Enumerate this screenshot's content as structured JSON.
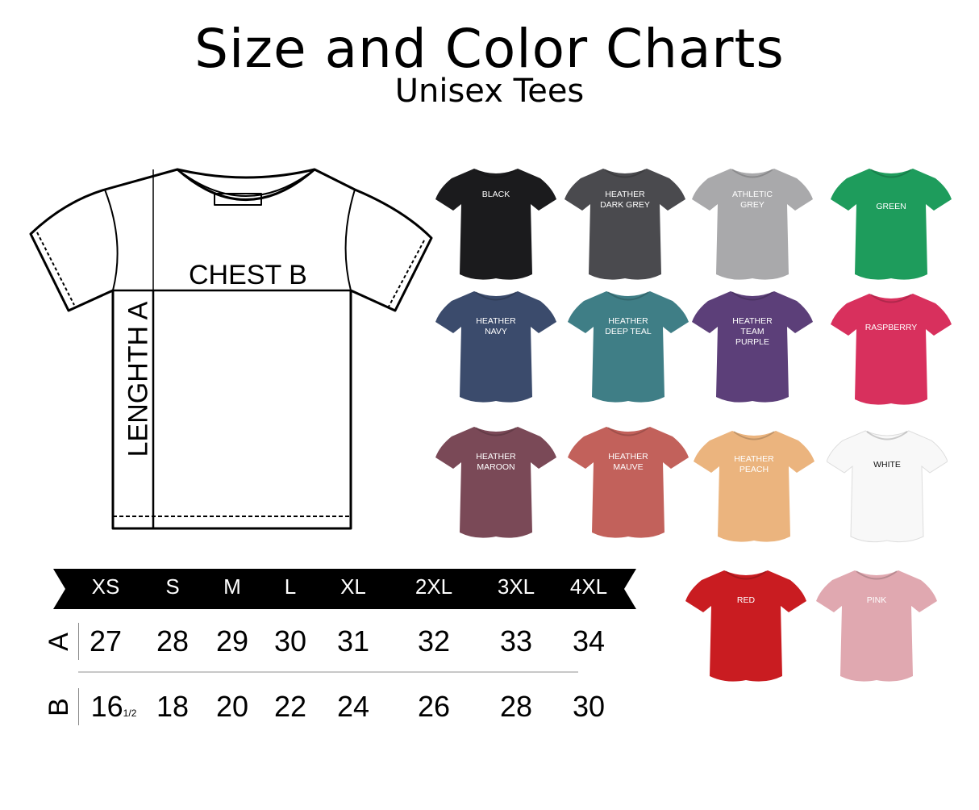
{
  "header": {
    "title": "Size and Color Charts",
    "subtitle": "Unisex Tees"
  },
  "diagram": {
    "chest_label": "CHEST B",
    "length_label": "LENGHTH A"
  },
  "size_chart": {
    "sizes": [
      "XS",
      "S",
      "M",
      "L",
      "XL",
      "2XL",
      "3XL",
      "4XL"
    ],
    "rows": [
      {
        "label": "A",
        "values": [
          "27",
          "28",
          "29",
          "30",
          "31",
          "32",
          "33",
          "34"
        ]
      },
      {
        "label": "B",
        "values": [
          "16",
          "18",
          "20",
          "22",
          "24",
          "26",
          "28",
          "30"
        ],
        "first_fraction": "1/2"
      }
    ]
  },
  "colors": [
    {
      "name": "BLACK",
      "hex": "#1b1b1d",
      "text": "#ffffff"
    },
    {
      "name": "HEATHER\nDARK GREY",
      "hex": "#4a4a4e",
      "text": "#ffffff"
    },
    {
      "name": "ATHLETIC\nGREY",
      "hex": "#a9a9ab",
      "text": "#ffffff"
    },
    {
      "name": "GREEN",
      "hex": "#1e9c5c",
      "text": "#ffffff"
    },
    {
      "name": "HEATHER\nNAVY",
      "hex": "#3b4b6c",
      "text": "#ffffff"
    },
    {
      "name": "HEATHER\nDEEP TEAL",
      "hex": "#3f7e86",
      "text": "#ffffff"
    },
    {
      "name": "HEATHER\nTEAM\nPURPLE",
      "hex": "#5c3f79",
      "text": "#ffffff"
    },
    {
      "name": "RASPBERRY",
      "hex": "#d8305d",
      "text": "#ffffff"
    },
    {
      "name": "HEATHER\nMAROON",
      "hex": "#7a4957",
      "text": "#ffffff"
    },
    {
      "name": "HEATHER\nMAUVE",
      "hex": "#c2615b",
      "text": "#ffffff"
    },
    {
      "name": "HEATHER\nPEACH",
      "hex": "#ebb47e",
      "text": "#ffffff"
    },
    {
      "name": "WHITE",
      "hex": "#f8f8f8",
      "text": "#111111"
    },
    {
      "name": "RED",
      "hex": "#c91c21",
      "text": "#ffffff"
    },
    {
      "name": "PINK",
      "hex": "#e0a8b0",
      "text": "#ffffff"
    }
  ]
}
